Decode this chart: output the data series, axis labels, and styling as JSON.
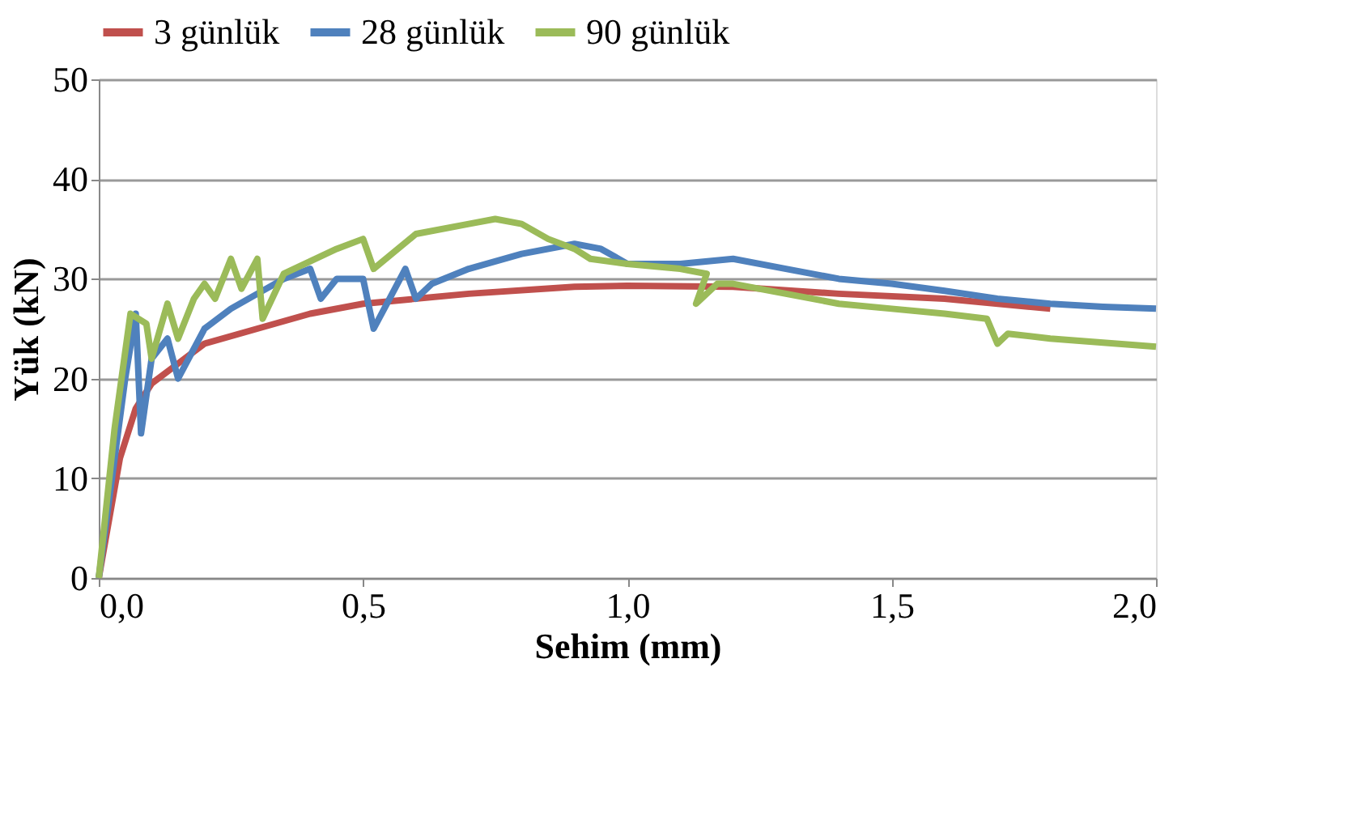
{
  "chart_data": {
    "type": "line",
    "xlabel": "Sehim (mm)",
    "ylabel": "Yük (kN)",
    "xlim": [
      0,
      2
    ],
    "xticks": [
      {
        "value": 0,
        "label": "0,0"
      },
      {
        "value": 0.5,
        "label": "0,5"
      },
      {
        "value": 1,
        "label": "1,0"
      },
      {
        "value": 1.5,
        "label": "1,5"
      },
      {
        "value": 2,
        "label": "2,0"
      }
    ],
    "ylim": [
      0,
      50
    ],
    "yticks": [
      0,
      10,
      20,
      30,
      40,
      50
    ],
    "grid": "y",
    "legend": "top",
    "marker": "none",
    "line_style": "solid",
    "series": [
      {
        "name": "3 günlük",
        "color": "#c0504d",
        "x": [
          0,
          0.04,
          0.07,
          0.1,
          0.15,
          0.2,
          0.3,
          0.4,
          0.5,
          0.7,
          0.9,
          1.0,
          1.2,
          1.4,
          1.6,
          1.8
        ],
        "values": [
          0,
          12,
          17,
          19.5,
          21.5,
          23.5,
          25,
          26.5,
          27.5,
          28.5,
          29.2,
          29.3,
          29.2,
          28.5,
          28,
          27
        ]
      },
      {
        "name": "28 günlük",
        "color": "#4f81bd",
        "x": [
          0,
          0.05,
          0.07,
          0.08,
          0.1,
          0.13,
          0.15,
          0.2,
          0.25,
          0.3,
          0.35,
          0.4,
          0.42,
          0.45,
          0.5,
          0.52,
          0.55,
          0.58,
          0.6,
          0.63,
          0.7,
          0.8,
          0.9,
          0.95,
          1.0,
          1.1,
          1.2,
          1.3,
          1.4,
          1.5,
          1.6,
          1.7,
          1.8,
          1.9,
          2.0
        ],
        "values": [
          0,
          20,
          26.5,
          14.5,
          22,
          24,
          20,
          25,
          27,
          28.5,
          30,
          31,
          28,
          30,
          30,
          25,
          28,
          31,
          28,
          29.5,
          31,
          32.5,
          33.5,
          33,
          31.5,
          31.5,
          32,
          31,
          30,
          29.5,
          28.8,
          28,
          27.5,
          27.2,
          27
        ]
      },
      {
        "name": "90 günlük",
        "color": "#9bbb59",
        "x": [
          0,
          0.03,
          0.06,
          0.09,
          0.1,
          0.13,
          0.15,
          0.18,
          0.2,
          0.22,
          0.25,
          0.27,
          0.3,
          0.31,
          0.35,
          0.45,
          0.5,
          0.52,
          0.6,
          0.7,
          0.75,
          0.8,
          0.85,
          0.9,
          0.93,
          1.0,
          1.1,
          1.15,
          1.13,
          1.17,
          1.2,
          1.3,
          1.4,
          1.5,
          1.6,
          1.68,
          1.7,
          1.72,
          1.8,
          2.0
        ],
        "values": [
          0,
          15,
          26.5,
          25.5,
          22,
          27.5,
          24,
          28,
          29.5,
          28,
          32,
          29,
          32,
          26,
          30.5,
          33,
          34,
          31,
          34.5,
          35.5,
          36,
          35.5,
          34,
          33,
          32,
          31.5,
          31,
          30.5,
          27.5,
          29.5,
          29.5,
          28.5,
          27.5,
          27,
          26.5,
          26,
          23.5,
          24.5,
          24,
          23.2
        ]
      }
    ]
  }
}
